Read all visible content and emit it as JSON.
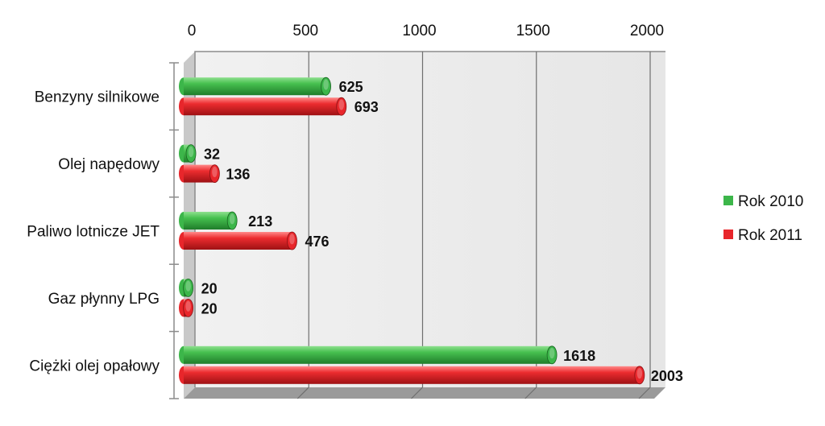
{
  "chart_data": {
    "type": "bar",
    "orientation": "horizontal",
    "title": "",
    "categories": [
      "Benzyny silnikowe",
      "Olej napędowy",
      "Paliwo lotnicze JET",
      "Gaz płynny LPG",
      "Ciężki olej opałowy"
    ],
    "series": [
      {
        "name": "Rok 2010",
        "color": "#3cb64a",
        "values": [
          625,
          32,
          213,
          20,
          1618
        ]
      },
      {
        "name": "Rok 2011",
        "color": "#e8262b",
        "values": [
          693,
          136,
          476,
          20,
          2003
        ]
      }
    ],
    "xlim": [
      0,
      2000
    ],
    "xticks": [
      "0",
      "500",
      "1000",
      "1500",
      "2000"
    ],
    "value_axis_position": "top",
    "grid": true,
    "legend_position": "right"
  }
}
